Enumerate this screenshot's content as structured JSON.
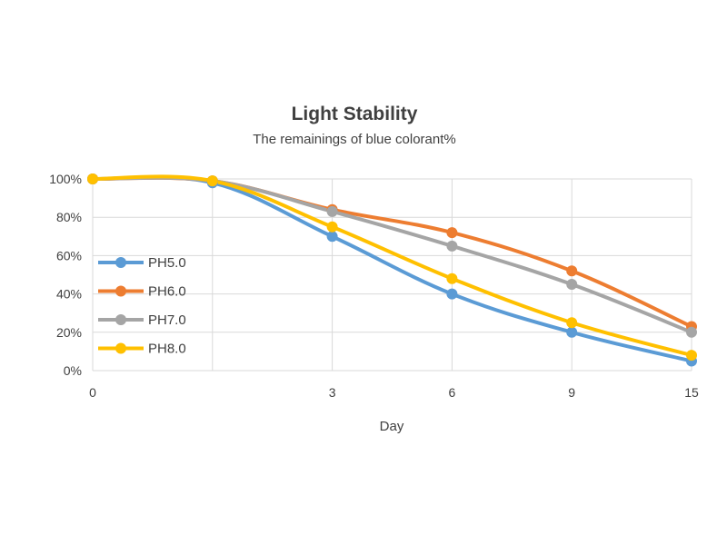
{
  "chart_data": {
    "type": "line",
    "title": "Light Stability",
    "subtitle": "The remainings of blue colorant%",
    "xlabel": "Day",
    "ylabel": "",
    "x_tick_labels": [
      "0",
      "",
      "3",
      "6",
      "9",
      "15"
    ],
    "y_tick_labels": [
      "0%",
      "20%",
      "40%",
      "60%",
      "80%",
      "100%"
    ],
    "ylim": [
      0,
      100
    ],
    "grid": true,
    "legend_position": "left",
    "series": [
      {
        "name": "PH5.0",
        "color": "#5b9bd5",
        "values": [
          100,
          98,
          70,
          40,
          20,
          5
        ]
      },
      {
        "name": "PH6.0",
        "color": "#ed7d31",
        "values": [
          100,
          99,
          84,
          72,
          52,
          23
        ]
      },
      {
        "name": "PH7.0",
        "color": "#a5a5a5",
        "values": [
          100,
          99,
          83,
          65,
          45,
          20
        ]
      },
      {
        "name": "PH8.0",
        "color": "#ffc000",
        "values": [
          100,
          99,
          75,
          48,
          25,
          8
        ]
      }
    ]
  }
}
